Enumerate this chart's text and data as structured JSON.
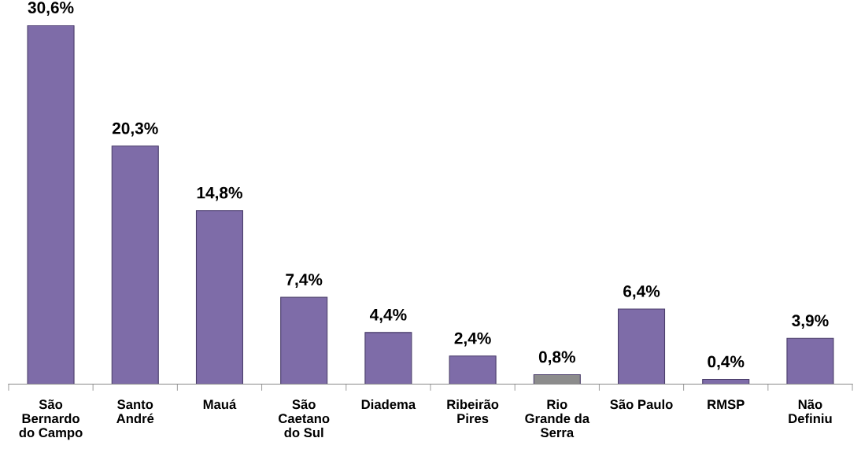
{
  "chart_data": {
    "type": "bar",
    "categories": [
      "São\nBernardo\ndo Campo",
      "Santo\nAndré",
      "Mauá",
      "São\nCaetano\ndo Sul",
      "Diadema",
      "Ribeirão\nPires",
      "Rio\nGrande da\nSerra",
      "São Paulo",
      "RMSP",
      "Não\nDefiniu"
    ],
    "values": [
      30.6,
      20.3,
      14.8,
      7.4,
      4.4,
      2.4,
      0.8,
      6.4,
      0.4,
      3.9
    ],
    "value_labels": [
      "30,6%",
      "20,3%",
      "14,8%",
      "7,4%",
      "4,4%",
      "2,4%",
      "0,8%",
      "6,4%",
      "0,4%",
      "3,9%"
    ],
    "colors": [
      "#7e6ca8",
      "#7e6ca8",
      "#7e6ca8",
      "#7e6ca8",
      "#7e6ca8",
      "#7e6ca8",
      "#8c8c8c",
      "#7e6ca8",
      "#7e6ca8",
      "#7e6ca8"
    ],
    "grid": false,
    "legend": false
  }
}
